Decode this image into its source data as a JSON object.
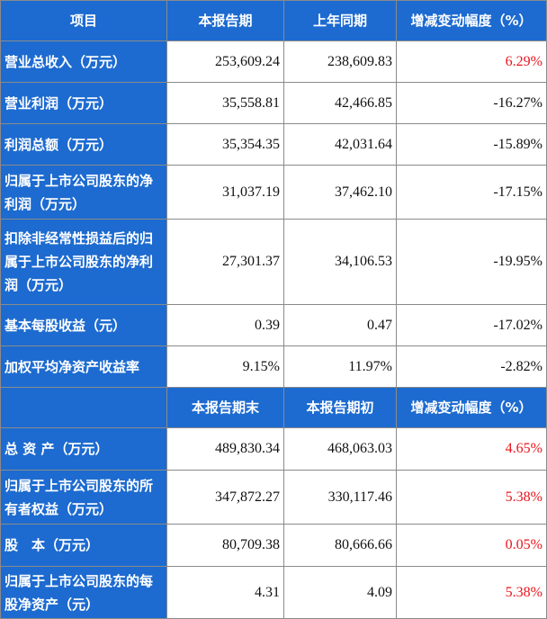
{
  "header": [
    "项目",
    "本报告期",
    "上年同期",
    "增减变动幅度（%）"
  ],
  "rows1": [
    {
      "label": "营业总收入（万元）",
      "current": "253,609.24",
      "previous": "238,609.83",
      "change": "6.29%",
      "up": true
    },
    {
      "label": "营业利润（万元）",
      "current": "35,558.81",
      "previous": "42,466.85",
      "change": "-16.27%",
      "up": false
    },
    {
      "label": "利润总额（万元）",
      "current": "35,354.35",
      "previous": "42,031.64",
      "change": "-15.89%",
      "up": false
    },
    {
      "label": "归属于上市公司股东的净利润（万元）",
      "current": "31,037.19",
      "previous": "37,462.10",
      "change": "-17.15%",
      "up": false
    },
    {
      "label": "扣除非经常性损益后的归属于上市公司股东的净利润（万元）",
      "current": "27,301.37",
      "previous": "34,106.53",
      "change": "-19.95%",
      "up": false
    },
    {
      "label": "基本每股收益（元）",
      "current": "0.39",
      "previous": "0.47",
      "change": "-17.02%",
      "up": false
    },
    {
      "label": "加权平均净资产收益率",
      "current": "9.15%",
      "previous": "11.97%",
      "change": "-2.82%",
      "up": false
    }
  ],
  "header2": [
    "",
    "本报告期末",
    "本报告期初",
    "增减变动幅度（%）"
  ],
  "rows2": [
    {
      "label": "总 资 产（万元）",
      "current": "489,830.34",
      "previous": "468,063.03",
      "change": "4.65%",
      "up": true
    },
    {
      "label": "归属于上市公司股东的所有者权益（万元）",
      "current": "347,872.27",
      "previous": "330,117.46",
      "change": "5.38%",
      "up": true
    },
    {
      "label": "股　本（万元）",
      "current": "80,709.38",
      "previous": "80,666.66",
      "change": "0.05%",
      "up": true
    },
    {
      "label": "归属于上市公司股东的每股净资产（元）",
      "current": "4.31",
      "previous": "4.09",
      "change": "5.38%",
      "up": true
    }
  ],
  "colors": {
    "header_bg": "#1d6bd0",
    "increase": "#e8141c"
  }
}
